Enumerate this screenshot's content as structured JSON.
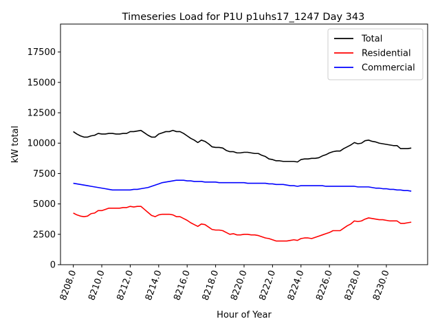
{
  "chart_data": {
    "type": "line",
    "title": "Timeseries Load for P1U p1uhs17_1247  Day 343",
    "xlabel": "Hour of Year",
    "ylabel": "kW total",
    "xlim": [
      8207.1,
      8232.9
    ],
    "ylim": [
      0,
      19800
    ],
    "xticks": [
      8208,
      8210,
      8212,
      8214,
      8216,
      8218,
      8220,
      8222,
      8224,
      8226,
      8228,
      8230
    ],
    "xtick_labels": [
      "8208.0",
      "8210.0",
      "8212.0",
      "8214.0",
      "8216.0",
      "8218.0",
      "8220.0",
      "8222.0",
      "8224.0",
      "8226.0",
      "8228.0",
      "8230.0"
    ],
    "yticks": [
      0,
      2500,
      5000,
      7500,
      10000,
      12500,
      15000,
      17500
    ],
    "ytick_labels": [
      "0",
      "2500",
      "5000",
      "7500",
      "10000",
      "12500",
      "15000",
      "17500"
    ],
    "grid": false,
    "legend_position": "upper right",
    "x": [
      8208.0,
      8208.25,
      8208.5,
      8208.75,
      8209.0,
      8209.25,
      8209.5,
      8209.75,
      8210.0,
      8210.25,
      8210.5,
      8210.75,
      8211.0,
      8211.25,
      8211.5,
      8211.75,
      8212.0,
      8212.25,
      8212.5,
      8212.75,
      8213.0,
      8213.25,
      8213.5,
      8213.75,
      8214.0,
      8214.25,
      8214.5,
      8214.75,
      8215.0,
      8215.25,
      8215.5,
      8215.75,
      8216.0,
      8216.25,
      8216.5,
      8216.75,
      8217.0,
      8217.25,
      8217.5,
      8217.75,
      8218.0,
      8218.25,
      8218.5,
      8218.75,
      8219.0,
      8219.25,
      8219.5,
      8219.75,
      8220.0,
      8220.25,
      8220.5,
      8220.75,
      8221.0,
      8221.25,
      8221.5,
      8221.75,
      8222.0,
      8222.25,
      8222.5,
      8222.75,
      8223.0,
      8223.25,
      8223.5,
      8223.75,
      8224.0,
      8224.25,
      8224.5,
      8224.75,
      8225.0,
      8225.25,
      8225.5,
      8225.75,
      8226.0,
      8226.25,
      8226.5,
      8226.75,
      8227.0,
      8227.25,
      8227.5,
      8227.75,
      8228.0,
      8228.25,
      8228.5,
      8228.75,
      8229.0,
      8229.25,
      8229.5,
      8229.75,
      8230.0,
      8230.25,
      8230.5,
      8230.75,
      8231.0,
      8231.25,
      8231.5,
      8231.75
    ],
    "series": [
      {
        "name": "Total",
        "color": "#000000",
        "values": [
          10950,
          10750,
          10600,
          10500,
          10500,
          10600,
          10650,
          10800,
          10750,
          10750,
          10800,
          10800,
          10750,
          10750,
          10800,
          10800,
          10950,
          10950,
          11000,
          11050,
          10850,
          10650,
          10500,
          10500,
          10750,
          10850,
          10950,
          10950,
          11050,
          10950,
          10950,
          10800,
          10600,
          10400,
          10250,
          10050,
          10250,
          10150,
          9950,
          9700,
          9650,
          9650,
          9600,
          9400,
          9300,
          9300,
          9200,
          9200,
          9250,
          9250,
          9200,
          9150,
          9150,
          9000,
          8900,
          8700,
          8650,
          8550,
          8550,
          8500,
          8500,
          8500,
          8500,
          8450,
          8650,
          8700,
          8700,
          8750,
          8750,
          8800,
          8950,
          9050,
          9200,
          9300,
          9350,
          9350,
          9550,
          9700,
          9850,
          10050,
          9950,
          10000,
          10200,
          10250,
          10150,
          10100,
          10000,
          9950,
          9900,
          9850,
          9800,
          9800,
          9550,
          9550,
          9550,
          9600
        ]
      },
      {
        "name": "Residential",
        "color": "#ff0000",
        "values": [
          4250,
          4100,
          4000,
          3950,
          4000,
          4200,
          4250,
          4450,
          4450,
          4550,
          4650,
          4650,
          4650,
          4650,
          4700,
          4700,
          4800,
          4750,
          4800,
          4800,
          4550,
          4300,
          4050,
          3950,
          4100,
          4150,
          4150,
          4150,
          4100,
          3950,
          3950,
          3800,
          3650,
          3450,
          3300,
          3150,
          3350,
          3300,
          3100,
          2900,
          2850,
          2850,
          2800,
          2650,
          2500,
          2550,
          2450,
          2450,
          2500,
          2500,
          2450,
          2450,
          2400,
          2300,
          2200,
          2150,
          2050,
          1950,
          1950,
          1950,
          1950,
          2000,
          2050,
          2000,
          2150,
          2200,
          2200,
          2150,
          2250,
          2350,
          2450,
          2550,
          2650,
          2800,
          2800,
          2800,
          3000,
          3200,
          3350,
          3600,
          3550,
          3600,
          3750,
          3850,
          3800,
          3750,
          3700,
          3700,
          3650,
          3600,
          3600,
          3600,
          3400,
          3400,
          3450,
          3500
        ]
      },
      {
        "name": "Commercial",
        "color": "#0000ff",
        "values": [
          6700,
          6650,
          6600,
          6550,
          6500,
          6450,
          6400,
          6350,
          6300,
          6250,
          6200,
          6150,
          6150,
          6150,
          6150,
          6150,
          6150,
          6200,
          6200,
          6250,
          6300,
          6350,
          6450,
          6550,
          6650,
          6750,
          6800,
          6850,
          6900,
          6950,
          6950,
          6950,
          6900,
          6900,
          6850,
          6850,
          6850,
          6800,
          6800,
          6800,
          6800,
          6750,
          6750,
          6750,
          6750,
          6750,
          6750,
          6750,
          6750,
          6700,
          6700,
          6700,
          6700,
          6700,
          6700,
          6650,
          6650,
          6600,
          6600,
          6600,
          6550,
          6500,
          6500,
          6450,
          6500,
          6500,
          6500,
          6500,
          6500,
          6500,
          6500,
          6450,
          6450,
          6450,
          6450,
          6450,
          6450,
          6450,
          6450,
          6450,
          6400,
          6400,
          6400,
          6400,
          6350,
          6300,
          6300,
          6250,
          6250,
          6200,
          6200,
          6150,
          6150,
          6100,
          6100,
          6050
        ]
      }
    ]
  }
}
